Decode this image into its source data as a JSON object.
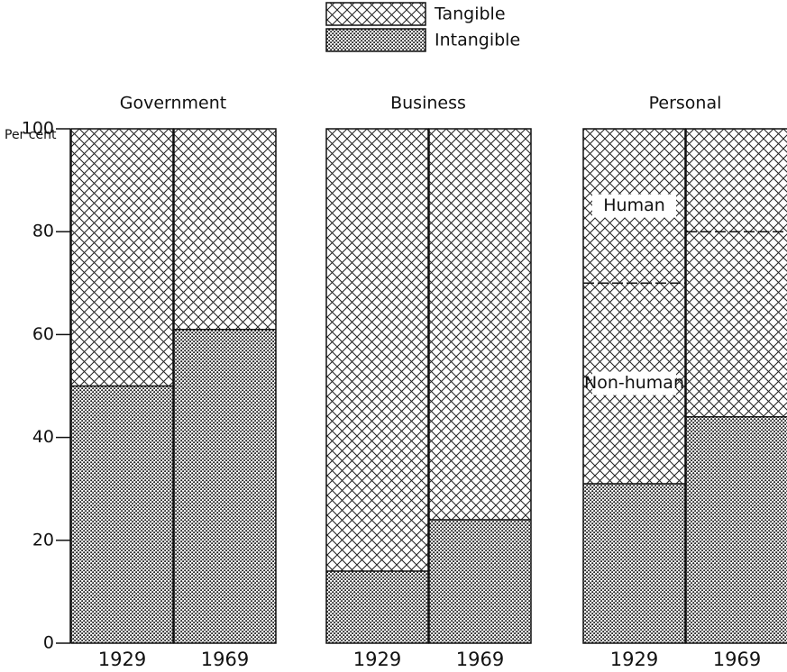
{
  "chart_data": [
    {
      "type": "bar",
      "stacked": true,
      "title": "Government",
      "ylabel": "Per cent",
      "ylim": [
        0,
        100
      ],
      "yticks": [
        0,
        20,
        40,
        60,
        80,
        100
      ],
      "legend": "top",
      "categories": [
        "1929",
        "1969"
      ],
      "series": [
        {
          "name": "Intangible",
          "pattern": "dots",
          "values": [
            50,
            61
          ]
        },
        {
          "name": "Tangible",
          "pattern": "crosshatch",
          "values": [
            50,
            39
          ]
        }
      ]
    },
    {
      "type": "bar",
      "stacked": true,
      "title": "Business",
      "categories": [
        "1929",
        "1969"
      ],
      "series": [
        {
          "name": "Intangible",
          "pattern": "dots",
          "values": [
            14,
            24
          ]
        },
        {
          "name": "Tangible",
          "pattern": "crosshatch",
          "values": [
            86,
            76
          ]
        }
      ]
    },
    {
      "type": "bar",
      "stacked": true,
      "title": "Personal",
      "categories": [
        "1929",
        "1969"
      ],
      "series": [
        {
          "name": "Intangible",
          "pattern": "dots",
          "values": [
            31,
            44
          ]
        },
        {
          "name": "Non-human",
          "pattern": "crosshatch",
          "inline_label": true,
          "values": [
            39,
            36
          ]
        },
        {
          "name": "Human",
          "pattern": "crosshatch",
          "inline_label": true,
          "boundary": "dashed",
          "values": [
            30,
            20
          ]
        }
      ]
    }
  ]
}
